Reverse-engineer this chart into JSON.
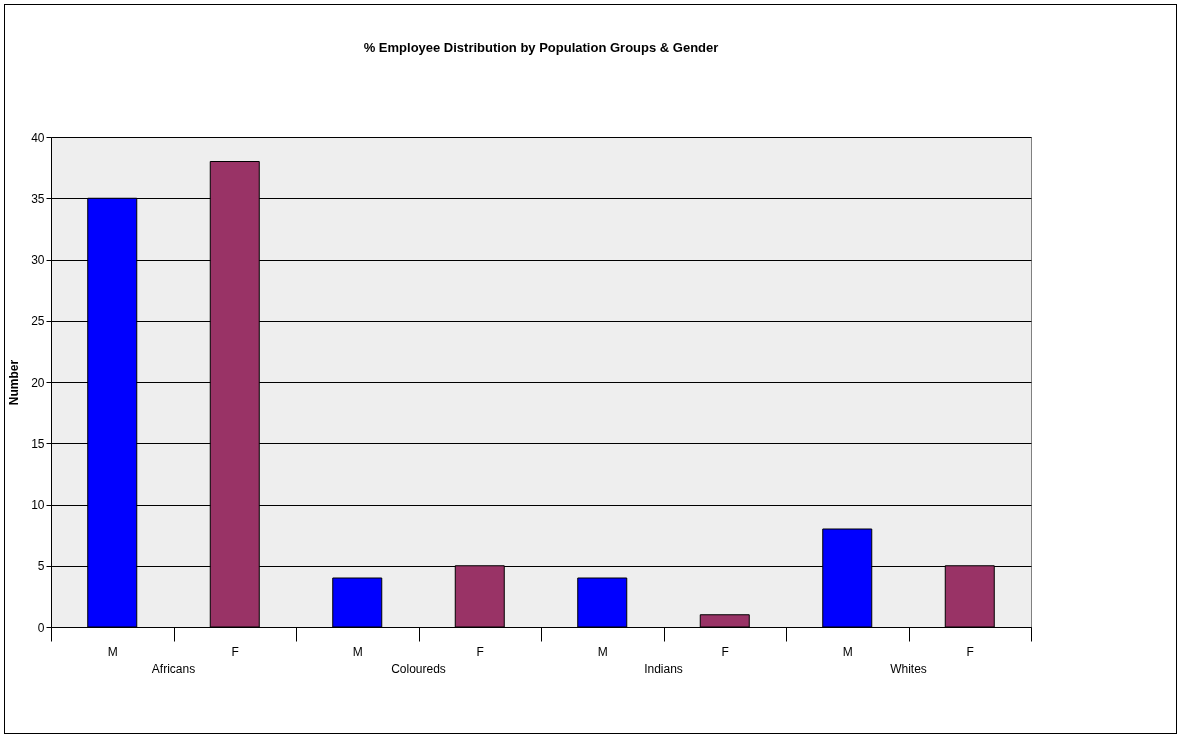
{
  "chart_data": {
    "type": "bar",
    "title": "% Employee Distribution by Population Groups & Gender",
    "ylabel": "Number",
    "categories": [
      "M",
      "F",
      "M",
      "F",
      "M",
      "F",
      "M",
      "F"
    ],
    "values": [
      35,
      38,
      4,
      5,
      4,
      1,
      8,
      5
    ],
    "colors": [
      "#0000ff",
      "#993366",
      "#0000ff",
      "#993366",
      "#0000ff",
      "#993366",
      "#0000ff",
      "#993366"
    ],
    "annotations": [
      "Africans",
      "Coloureds",
      "Indians",
      "Whites"
    ],
    "ylim": [
      0,
      40
    ],
    "yticks": [
      0,
      5,
      10,
      15,
      20,
      25,
      30,
      35,
      40
    ],
    "grid": "y"
  }
}
